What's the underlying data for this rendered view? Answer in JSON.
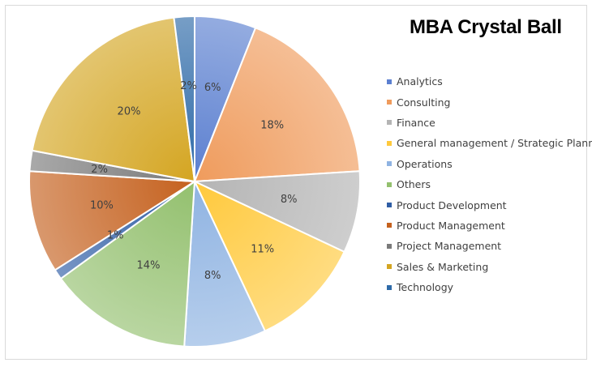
{
  "chart_data": {
    "type": "pie",
    "title": "MBA Crystal Ball",
    "categories": [
      "Analytics",
      "Consulting",
      "Finance",
      "General management / Strategic Planning",
      "Operations",
      "Others",
      "Product Development",
      "Product Management",
      "Project Management",
      "Sales & Marketing",
      "Technology"
    ],
    "values": [
      6,
      18,
      8,
      11,
      8,
      14,
      1,
      10,
      2,
      20,
      2
    ],
    "labels": [
      "6%",
      "18%",
      "8%",
      "11%",
      "8%",
      "14%",
      "1%",
      "10%",
      "2%",
      "20%",
      "2%"
    ],
    "colors": [
      "#5b7fd0",
      "#ef9b5c",
      "#b4b4b4",
      "#ffc93c",
      "#8fb3e2",
      "#93c06e",
      "#2f5ea5",
      "#c5611e",
      "#7a7a7a",
      "#d4a521",
      "#2e6aa8"
    ],
    "legend_position": "right"
  }
}
